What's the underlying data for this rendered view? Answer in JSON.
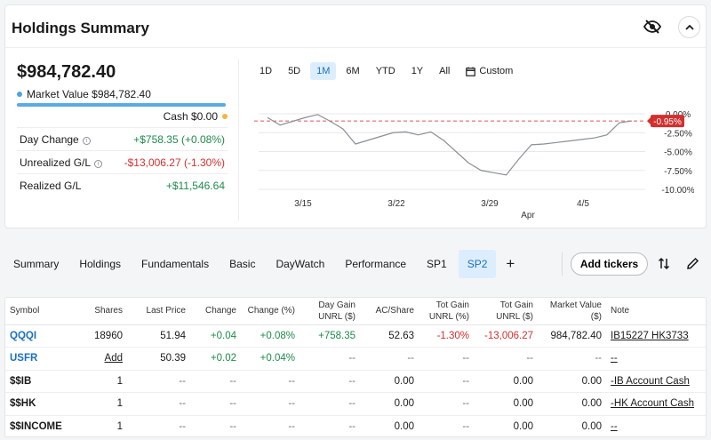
{
  "summary": {
    "title": "Holdings Summary",
    "total": "$984,782.40",
    "market_value_label": "Market Value $984,782.40",
    "cash_label": "Cash $0.00",
    "stats": [
      {
        "label": "Day Change",
        "value": "+$758.35 (+0.08%)",
        "tone": "pos",
        "info": true
      },
      {
        "label": "Unrealized G/L",
        "value": "-$13,006.27 (-1.30%)",
        "tone": "neg",
        "info": true
      },
      {
        "label": "Realized G/L",
        "value": "+$11,546.64",
        "tone": "pos",
        "info": false
      }
    ],
    "colors": {
      "market_value": "#5aaae6",
      "cash": "#f4b63c",
      "positive": "#1f8a4c",
      "negative": "#d32f2f",
      "accent": "#1a6fc1"
    }
  },
  "range_tabs": [
    "1D",
    "5D",
    "1M",
    "6M",
    "YTD",
    "1Y",
    "All"
  ],
  "range_active": "1M",
  "custom_label": "Custom",
  "chart_data": {
    "type": "line",
    "x_tick_labels": [
      "3/15",
      "3/22",
      "3/29",
      "4/5"
    ],
    "x_sub_label": "Apr",
    "y_tick_labels": [
      "0.00%",
      "-2.50%",
      "-5.00%",
      "-7.50%",
      "-10.00%"
    ],
    "ylim": [
      -10,
      0
    ],
    "current_label": "-0.95%",
    "reference_line": -0.95,
    "series": [
      {
        "values": [
          -0.5,
          -1.5,
          -1.0,
          -0.5,
          -0.1,
          -1.0,
          -2.0,
          -4.0,
          -3.5,
          -3.0,
          -2.5,
          -2.4,
          -2.8,
          -2.4,
          -3.5,
          -5.0,
          -6.5,
          -7.5,
          -7.8,
          -8.1,
          -6.0,
          -4.1,
          -4.0,
          -3.8,
          -3.6,
          -3.4,
          -3.2,
          -2.8,
          -1.2,
          -0.95
        ]
      }
    ]
  },
  "tabs": [
    "Summary",
    "Holdings",
    "Fundamentals",
    "Basic",
    "DayWatch",
    "Performance",
    "SP1",
    "SP2"
  ],
  "tab_active": "SP2",
  "add_tickers_label": "Add tickers",
  "table": {
    "headers": [
      "Symbol",
      "Shares",
      "Last Price",
      "Change",
      "Change (%)",
      "Day Gain UNRL ($)",
      "AC/Share",
      "Tot Gain UNRL (%)",
      "Tot Gain UNRL ($)",
      "Market Value ($)",
      "Note"
    ],
    "rows": [
      [
        "QQQI",
        "18960",
        "51.94",
        "+0.04",
        "+0.08%",
        "+758.35",
        "52.63",
        "-1.30%",
        "-13,006.27",
        "984,782.40",
        "IB15227 HK3733"
      ],
      [
        "USFR",
        "Add",
        "50.39",
        "+0.02",
        "+0.04%",
        "--",
        "--",
        "--",
        "--",
        "--",
        "--"
      ],
      [
        "$$IB",
        "1",
        "--",
        "--",
        "--",
        "--",
        "0.00",
        "--",
        "0.00",
        "0.00",
        "-IB Account Cash"
      ],
      [
        "$$HK",
        "1",
        "--",
        "--",
        "--",
        "--",
        "0.00",
        "--",
        "0.00",
        "0.00",
        "-HK Account Cash"
      ],
      [
        "$$INCOME",
        "1",
        "--",
        "--",
        "--",
        "--",
        "0.00",
        "--",
        "0.00",
        "0.00",
        "--"
      ]
    ]
  }
}
